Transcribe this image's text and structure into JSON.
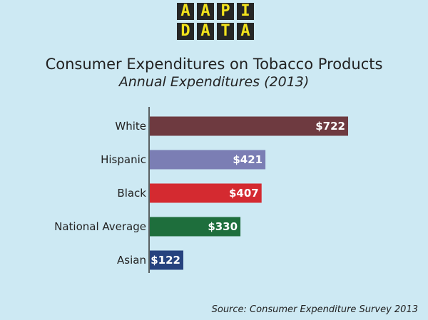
{
  "logo": {
    "letters": [
      "A",
      "A",
      "P",
      "I",
      "D",
      "A",
      "T",
      "A"
    ]
  },
  "chart_data": {
    "type": "bar",
    "orientation": "horizontal",
    "title": "Consumer Expenditures on Tobacco Products",
    "subtitle": "Annual Expenditures (2013)",
    "categories": [
      "White",
      "Hispanic",
      "Black",
      "National Average",
      "Asian"
    ],
    "values": [
      722,
      421,
      407,
      330,
      122
    ],
    "value_labels": [
      "$722",
      "$421",
      "$407",
      "$330",
      "$122"
    ],
    "colors": [
      "#6e3a40",
      "#7b7eb4",
      "#d42a30",
      "#1e6e3c",
      "#26427e"
    ],
    "xlim": [
      0,
      722
    ],
    "grid": false,
    "source": "Source: Consumer Expenditure Survey 2013"
  }
}
